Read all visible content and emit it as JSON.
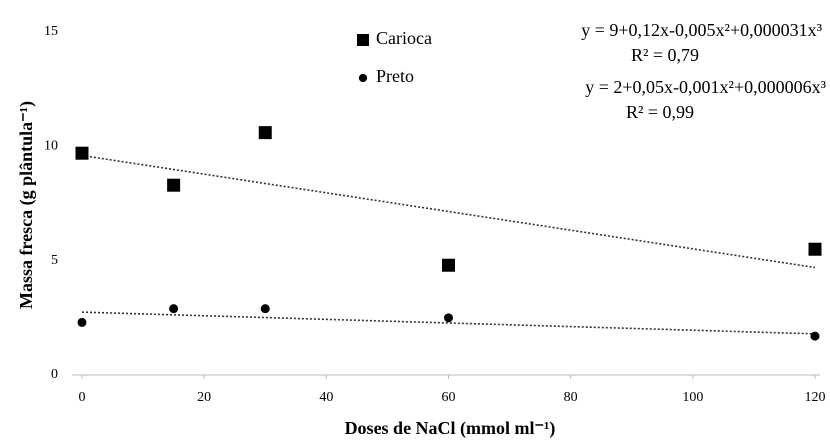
{
  "chart_data": {
    "type": "scatter",
    "x_label": "Doses de NaCl (mmol ml⁻¹)",
    "y_label": "Massa fresca (g plântula⁻¹)",
    "x": [
      0,
      15,
      30,
      60,
      120
    ],
    "series": [
      {
        "name": "Carioca",
        "color": "#000000",
        "marker": "square",
        "values": [
          9.7,
          8.3,
          10.6,
          4.8,
          5.5
        ],
        "trendline": {
          "x": [
            0,
            120
          ],
          "values": [
            9.6,
            4.7
          ]
        }
      },
      {
        "name": "Preto",
        "color": "#000000",
        "marker": "circle",
        "values": [
          2.3,
          2.9,
          2.9,
          2.5,
          1.7
        ],
        "trendline": {
          "x": [
            0,
            120
          ],
          "values": [
            2.75,
            1.8
          ]
        }
      }
    ],
    "annotations": [
      "y = 9+0,12x-0,005x²+0,000031x³",
      "R² = 0,79",
      "y = 2+0,05x-0,001x²+0,000006x³",
      "R² = 0,99"
    ],
    "xlim": [
      0,
      120
    ],
    "xticks": [
      0,
      20,
      40,
      60,
      80,
      100,
      120
    ],
    "ylim": [
      0,
      15
    ],
    "yticks": [
      0,
      5,
      10,
      15
    ],
    "grid": false
  }
}
